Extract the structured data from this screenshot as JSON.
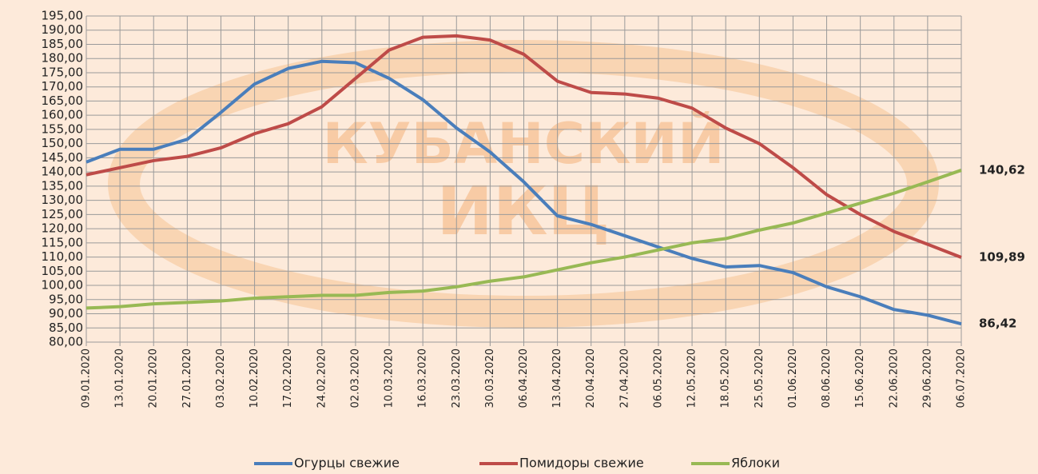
{
  "chart_data": {
    "type": "line",
    "watermark": [
      "КУБАНСКИЙ",
      "ИКЦ"
    ],
    "x": [
      "09.01.2020",
      "13.01.2020",
      "20.01.2020",
      "27.01.2020",
      "03.02.2020",
      "10.02.2020",
      "17.02.2020",
      "24.02.2020",
      "02.03.2020",
      "10.03.2020",
      "16.03.2020",
      "23.03.2020",
      "30.03.2020",
      "06.04.2020",
      "13.04.2020",
      "20.04.2020",
      "27.04.2020",
      "06.05.2020",
      "12.05.2020",
      "18.05.2020",
      "25.05.2020",
      "01.06.2020",
      "08.06.2020",
      "15.06.2020",
      "22.06.2020",
      "29.06.2020",
      "06.07.2020"
    ],
    "series": [
      {
        "name": "Огурцы свежие",
        "color": "#4a7ebb",
        "values": [
          143.5,
          148,
          148,
          151.5,
          161,
          171,
          176.5,
          179,
          178.5,
          173,
          165.5,
          155.5,
          147,
          136.5,
          124.5,
          121.5,
          117.5,
          113.5,
          109.5,
          106.5,
          107,
          104.5,
          99.5,
          96,
          91.5,
          89.5,
          86.42
        ],
        "value_labels": [
          null,
          null,
          null,
          null,
          null,
          null,
          null,
          null,
          null,
          null,
          null,
          null,
          null,
          null,
          null,
          null,
          null,
          null,
          null,
          null,
          null,
          null,
          null,
          null,
          null,
          null,
          "86,42"
        ]
      },
      {
        "name": "Помидоры свежие",
        "color": "#be4b48",
        "values": [
          139,
          141.5,
          144,
          145.5,
          148.5,
          153.5,
          157,
          163,
          173,
          183,
          187.5,
          188,
          186.5,
          181.5,
          172,
          168,
          167.5,
          166,
          162.5,
          155.5,
          150,
          141.5,
          132,
          125,
          119,
          114.5,
          109.89
        ],
        "value_labels": [
          null,
          null,
          null,
          null,
          null,
          null,
          null,
          null,
          null,
          null,
          null,
          null,
          null,
          null,
          null,
          null,
          null,
          null,
          null,
          null,
          null,
          null,
          null,
          null,
          null,
          null,
          "109,89"
        ]
      },
      {
        "name": "Яблоки",
        "color": "#98b954",
        "values": [
          92,
          92.5,
          93.5,
          94,
          94.5,
          95.5,
          96,
          96.5,
          96.5,
          97.5,
          98,
          99.5,
          101.5,
          103,
          105.5,
          108,
          110,
          112.5,
          115,
          116.5,
          119.5,
          122,
          125.5,
          129,
          132.5,
          136.5,
          140.62
        ],
        "value_labels": [
          null,
          null,
          null,
          null,
          null,
          null,
          null,
          null,
          null,
          null,
          null,
          null,
          null,
          null,
          null,
          null,
          null,
          null,
          null,
          null,
          null,
          null,
          null,
          null,
          null,
          null,
          "140,62"
        ]
      }
    ],
    "ylim": [
      80,
      195
    ],
    "yticks": [
      {
        "value": 80,
        "label": "80,00"
      },
      {
        "value": 85,
        "label": "85,00"
      },
      {
        "value": 90,
        "label": "90,00"
      },
      {
        "value": 95,
        "label": "95,00"
      },
      {
        "value": 100,
        "label": "100,00"
      },
      {
        "value": 105,
        "label": "105,00"
      },
      {
        "value": 110,
        "label": "110,00"
      },
      {
        "value": 115,
        "label": "115,00"
      },
      {
        "value": 120,
        "label": "120,00"
      },
      {
        "value": 125,
        "label": "125,00"
      },
      {
        "value": 130,
        "label": "130,00"
      },
      {
        "value": 135,
        "label": "135,00"
      },
      {
        "value": 140,
        "label": "140,00"
      },
      {
        "value": 145,
        "label": "145,00"
      },
      {
        "value": 150,
        "label": "150,00"
      },
      {
        "value": 155,
        "label": "155,00"
      },
      {
        "value": 160,
        "label": "160,00"
      },
      {
        "value": 165,
        "label": "165,00"
      },
      {
        "value": 170,
        "label": "170,00"
      },
      {
        "value": 175,
        "label": "175,00"
      },
      {
        "value": 180,
        "label": "180,00"
      },
      {
        "value": 185,
        "label": "185,00"
      },
      {
        "value": 190,
        "label": "190,00"
      },
      {
        "value": 195,
        "label": "195,00"
      }
    ],
    "grid": true,
    "legend": "bottom"
  }
}
